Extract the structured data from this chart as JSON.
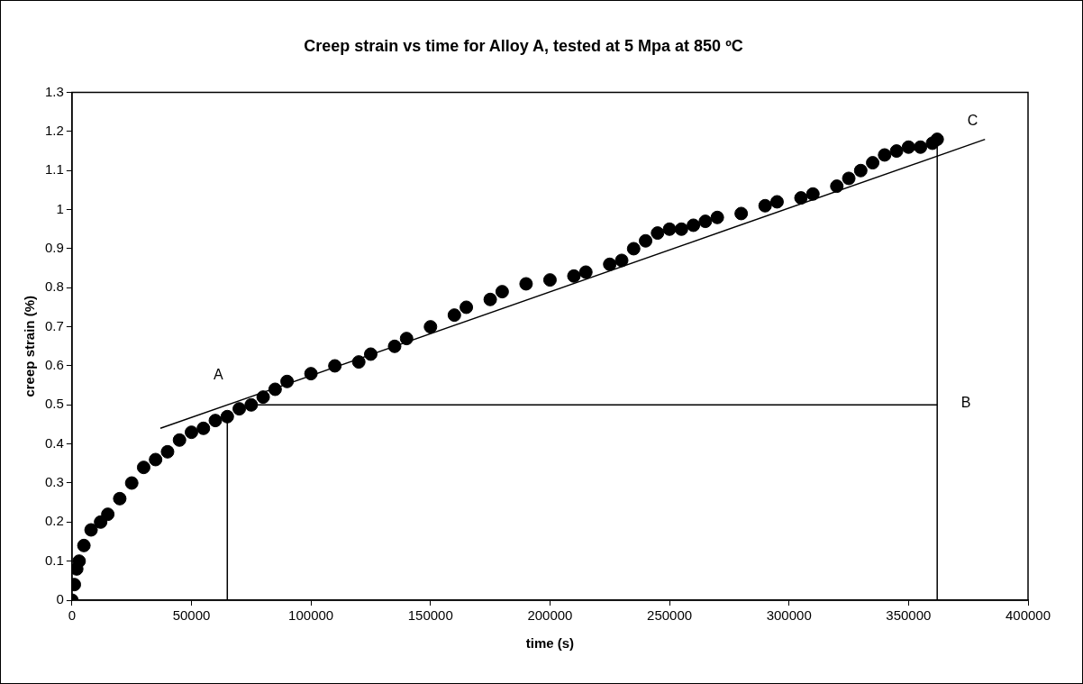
{
  "chart_data": {
    "type": "scatter",
    "title": "Creep strain vs time for Alloy A, tested at 5 Mpa at 850 ºC",
    "xlabel": "time (s)",
    "ylabel": "creep strain (%)",
    "xlim": [
      0,
      400000
    ],
    "xticks": [
      0,
      50000,
      100000,
      150000,
      200000,
      250000,
      300000,
      350000,
      400000
    ],
    "ylim": [
      0,
      1.3
    ],
    "yticks": [
      0,
      0.1,
      0.2,
      0.3,
      0.4,
      0.5,
      0.6,
      0.7,
      0.8,
      0.9,
      1,
      1.1,
      1.2,
      1.3
    ],
    "grid": false,
    "legend": false,
    "marker": "circle",
    "series": [
      {
        "color": "#000000",
        "x": [
          0,
          1000,
          2000,
          3000,
          5000,
          8000,
          12000,
          15000,
          20000,
          25000,
          30000,
          35000,
          40000,
          45000,
          50000,
          55000,
          60000,
          65000,
          70000,
          75000,
          80000,
          85000,
          90000,
          100000,
          110000,
          120000,
          125000,
          135000,
          140000,
          150000,
          160000,
          165000,
          175000,
          180000,
          190000,
          200000,
          210000,
          215000,
          225000,
          230000,
          235000,
          240000,
          245000,
          250000,
          255000,
          260000,
          265000,
          270000,
          280000,
          290000,
          295000,
          305000,
          310000,
          320000,
          325000,
          330000,
          335000,
          340000,
          345000,
          350000,
          355000,
          360000,
          362000
        ],
        "values": [
          0,
          0.04,
          0.08,
          0.1,
          0.14,
          0.18,
          0.2,
          0.22,
          0.26,
          0.3,
          0.34,
          0.36,
          0.38,
          0.41,
          0.43,
          0.44,
          0.46,
          0.47,
          0.49,
          0.5,
          0.52,
          0.54,
          0.56,
          0.58,
          0.6,
          0.61,
          0.63,
          0.65,
          0.67,
          0.7,
          0.73,
          0.75,
          0.77,
          0.79,
          0.81,
          0.82,
          0.83,
          0.84,
          0.86,
          0.87,
          0.9,
          0.92,
          0.94,
          0.95,
          0.95,
          0.96,
          0.97,
          0.98,
          0.99,
          1.01,
          1.02,
          1.03,
          1.04,
          1.06,
          1.08,
          1.1,
          1.12,
          1.14,
          1.15,
          1.16,
          1.16,
          1.17,
          1.18
        ]
      },
      {
        "type": "line",
        "color": "#000000",
        "marker": "none",
        "x": [
          37000,
          382000
        ],
        "values": [
          0.44,
          1.18
        ]
      },
      {
        "type": "line",
        "color": "#000000",
        "marker": "none",
        "x": [
          65000,
          65000
        ],
        "values": [
          0,
          0.47
        ]
      },
      {
        "type": "line",
        "color": "#000000",
        "marker": "none",
        "x": [
          75000,
          362000
        ],
        "values": [
          0.5,
          0.5
        ]
      },
      {
        "type": "line",
        "color": "#000000",
        "marker": "none",
        "x": [
          362000,
          362000
        ],
        "values": [
          0,
          1.18
        ]
      }
    ],
    "annotations": [
      "A",
      "B",
      "C"
    ]
  }
}
